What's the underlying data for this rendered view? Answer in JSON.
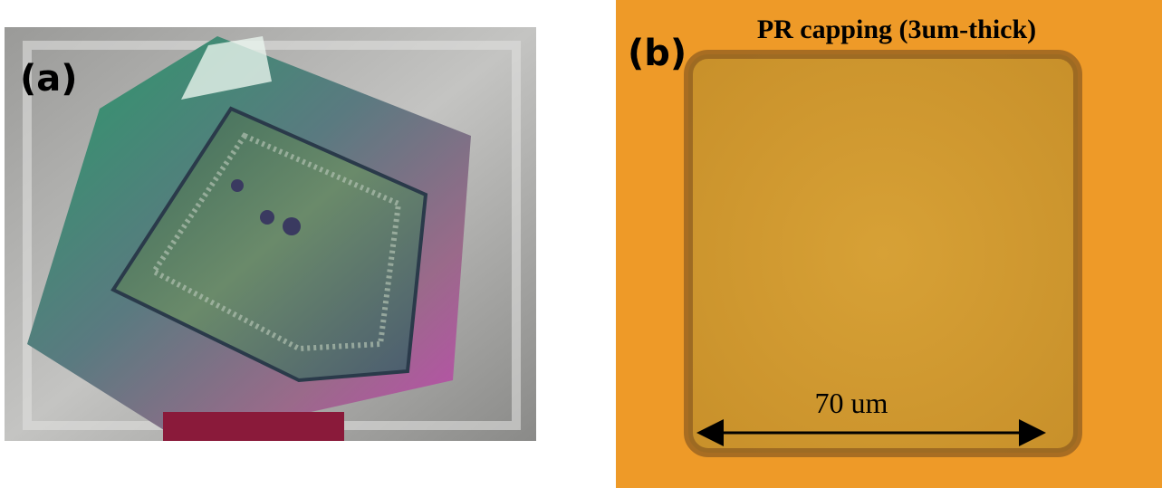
{
  "panel_a": {
    "label": "(a)"
  },
  "panel_b": {
    "label": "(b)",
    "title": "PR capping (3um-thick)",
    "scale_label": "70 um"
  }
}
